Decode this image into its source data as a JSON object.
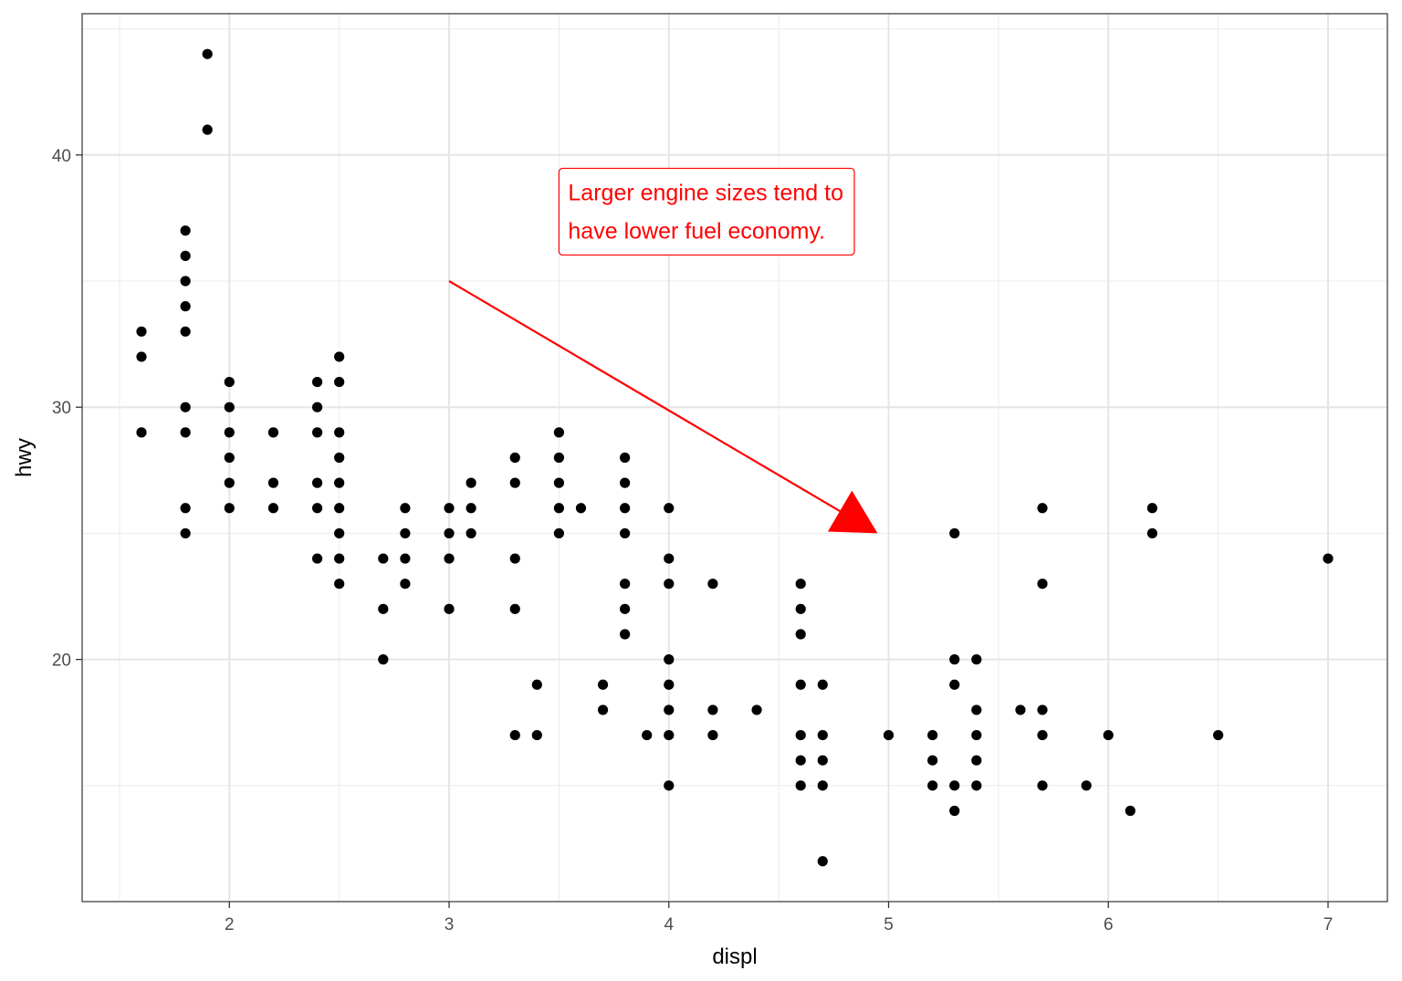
{
  "chart_data": {
    "type": "scatter",
    "title": "",
    "xlabel": "displ",
    "ylabel": "hwy",
    "xlim": [
      1.33,
      7.27
    ],
    "ylim": [
      10.4,
      45.6
    ],
    "x_ticks": [
      2,
      3,
      4,
      5,
      6,
      7
    ],
    "x_tick_labels": [
      "2",
      "3",
      "4",
      "5",
      "6",
      "7"
    ],
    "y_ticks": [
      20,
      30,
      40
    ],
    "y_tick_labels": [
      "20",
      "30",
      "40"
    ],
    "x_minor_grid": [
      1.5,
      2.5,
      3.5,
      4.5,
      5.5,
      6.5
    ],
    "y_minor_grid": [
      15,
      25,
      35,
      45
    ],
    "grid": true,
    "point_color": "#000000",
    "points": [
      [
        1.6,
        33
      ],
      [
        1.6,
        32
      ],
      [
        1.6,
        29
      ],
      [
        1.8,
        37
      ],
      [
        1.8,
        36
      ],
      [
        1.8,
        35
      ],
      [
        1.8,
        34
      ],
      [
        1.8,
        33
      ],
      [
        1.8,
        30
      ],
      [
        1.8,
        29
      ],
      [
        1.8,
        26
      ],
      [
        1.8,
        25
      ],
      [
        1.9,
        44
      ],
      [
        1.9,
        41
      ],
      [
        2.0,
        31
      ],
      [
        2.0,
        30
      ],
      [
        2.0,
        29
      ],
      [
        2.0,
        28
      ],
      [
        2.0,
        27
      ],
      [
        2.0,
        26
      ],
      [
        2.2,
        29
      ],
      [
        2.2,
        27
      ],
      [
        2.2,
        26
      ],
      [
        2.4,
        31
      ],
      [
        2.4,
        30
      ],
      [
        2.4,
        29
      ],
      [
        2.4,
        27
      ],
      [
        2.4,
        26
      ],
      [
        2.4,
        24
      ],
      [
        2.5,
        32
      ],
      [
        2.5,
        31
      ],
      [
        2.5,
        29
      ],
      [
        2.5,
        28
      ],
      [
        2.5,
        27
      ],
      [
        2.5,
        26
      ],
      [
        2.5,
        25
      ],
      [
        2.5,
        24
      ],
      [
        2.5,
        23
      ],
      [
        2.7,
        24
      ],
      [
        2.7,
        22
      ],
      [
        2.7,
        20
      ],
      [
        2.8,
        26
      ],
      [
        2.8,
        25
      ],
      [
        2.8,
        24
      ],
      [
        2.8,
        23
      ],
      [
        3.0,
        26
      ],
      [
        3.0,
        25
      ],
      [
        3.0,
        24
      ],
      [
        3.0,
        22
      ],
      [
        3.1,
        27
      ],
      [
        3.1,
        26
      ],
      [
        3.1,
        25
      ],
      [
        3.3,
        28
      ],
      [
        3.3,
        27
      ],
      [
        3.3,
        24
      ],
      [
        3.3,
        22
      ],
      [
        3.3,
        17
      ],
      [
        3.4,
        19
      ],
      [
        3.4,
        17
      ],
      [
        3.5,
        29
      ],
      [
        3.5,
        28
      ],
      [
        3.5,
        27
      ],
      [
        3.5,
        26
      ],
      [
        3.5,
        25
      ],
      [
        3.6,
        26
      ],
      [
        3.7,
        19
      ],
      [
        3.7,
        18
      ],
      [
        3.8,
        28
      ],
      [
        3.8,
        27
      ],
      [
        3.8,
        26
      ],
      [
        3.8,
        25
      ],
      [
        3.8,
        23
      ],
      [
        3.8,
        22
      ],
      [
        3.8,
        21
      ],
      [
        3.9,
        17
      ],
      [
        4.0,
        26
      ],
      [
        4.0,
        24
      ],
      [
        4.0,
        23
      ],
      [
        4.0,
        20
      ],
      [
        4.0,
        19
      ],
      [
        4.0,
        18
      ],
      [
        4.0,
        17
      ],
      [
        4.0,
        15
      ],
      [
        4.2,
        23
      ],
      [
        4.2,
        18
      ],
      [
        4.2,
        17
      ],
      [
        4.4,
        18
      ],
      [
        4.6,
        23
      ],
      [
        4.6,
        22
      ],
      [
        4.6,
        21
      ],
      [
        4.6,
        19
      ],
      [
        4.6,
        17
      ],
      [
        4.6,
        16
      ],
      [
        4.6,
        15
      ],
      [
        4.7,
        19
      ],
      [
        4.7,
        17
      ],
      [
        4.7,
        16
      ],
      [
        4.7,
        15
      ],
      [
        4.7,
        12
      ],
      [
        5.0,
        17
      ],
      [
        5.2,
        17
      ],
      [
        5.2,
        16
      ],
      [
        5.2,
        15
      ],
      [
        5.3,
        25
      ],
      [
        5.3,
        20
      ],
      [
        5.3,
        19
      ],
      [
        5.3,
        15
      ],
      [
        5.3,
        14
      ],
      [
        5.4,
        20
      ],
      [
        5.4,
        18
      ],
      [
        5.4,
        17
      ],
      [
        5.4,
        16
      ],
      [
        5.4,
        15
      ],
      [
        5.6,
        18
      ],
      [
        5.7,
        26
      ],
      [
        5.7,
        23
      ],
      [
        5.7,
        18
      ],
      [
        5.7,
        17
      ],
      [
        5.7,
        15
      ],
      [
        5.9,
        15
      ],
      [
        6.0,
        17
      ],
      [
        6.1,
        14
      ],
      [
        6.2,
        26
      ],
      [
        6.2,
        25
      ],
      [
        6.5,
        17
      ],
      [
        7.0,
        24
      ]
    ],
    "annotation": {
      "text_lines": [
        "Larger engine sizes tend to",
        "have lower fuel economy."
      ],
      "label_x": 3.5,
      "label_y": 39,
      "arrow_from": [
        3.0,
        35
      ],
      "arrow_to": [
        4.95,
        25
      ],
      "color": "#ff0000"
    }
  }
}
